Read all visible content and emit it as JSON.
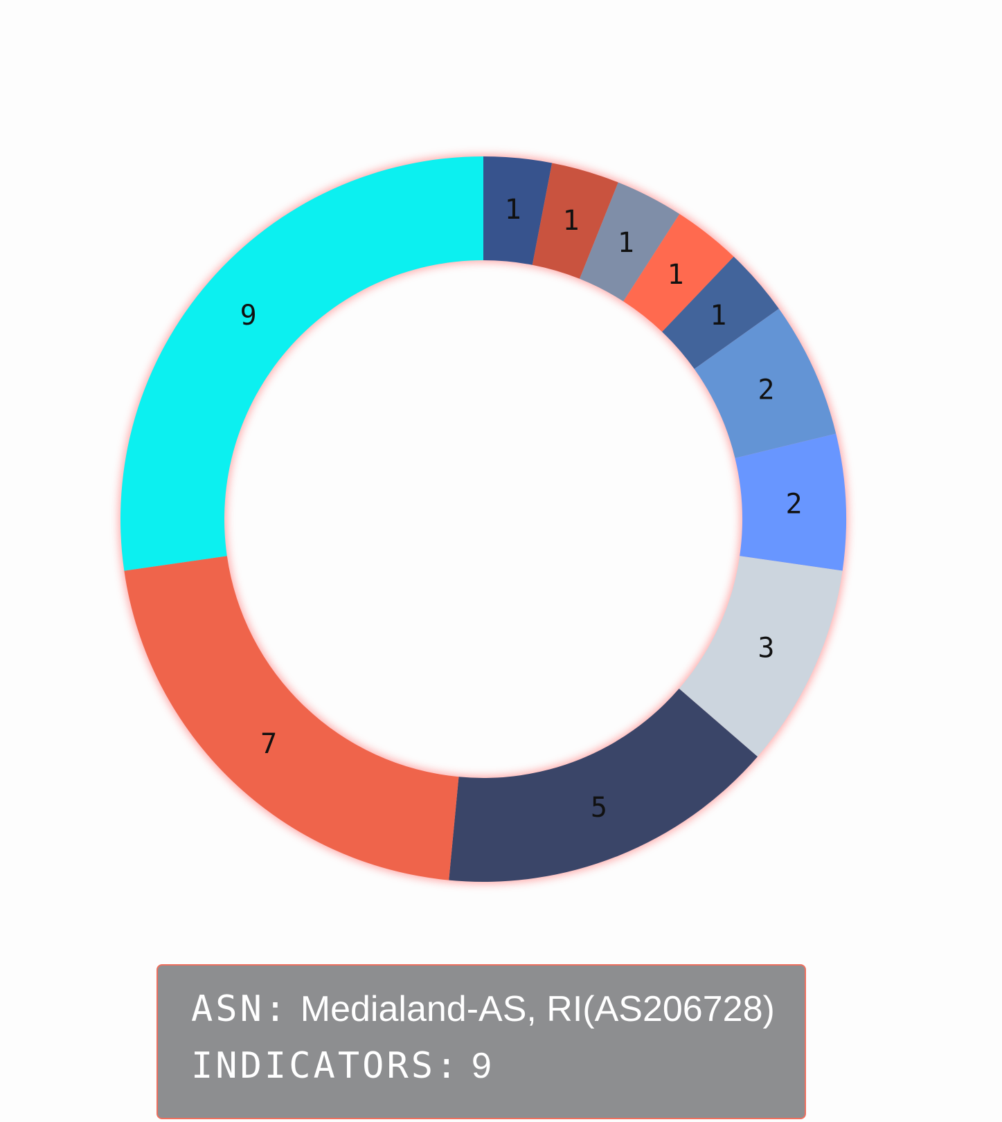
{
  "chart_data": {
    "type": "pie",
    "style": "donut",
    "slices": [
      {
        "value": 1,
        "label": "1",
        "color": "#37538d"
      },
      {
        "value": 1,
        "label": "1",
        "color": "#c9533f"
      },
      {
        "value": 1,
        "label": "1",
        "color": "#7f8ea8"
      },
      {
        "value": 1,
        "label": "1",
        "color": "#ff6a4f"
      },
      {
        "value": 1,
        "label": "1",
        "color": "#42649b"
      },
      {
        "value": 2,
        "label": "2",
        "color": "#6394d5"
      },
      {
        "value": 2,
        "label": "2",
        "color": "#6896ff"
      },
      {
        "value": 3,
        "label": "3",
        "color": "#ccd5de"
      },
      {
        "value": 5,
        "label": "5",
        "color": "#3a4568"
      },
      {
        "value": 7,
        "label": "7",
        "color": "#ef644b"
      },
      {
        "value": 9,
        "label": "9",
        "color": "#0cf0f0"
      }
    ],
    "highlighted_slice": 10,
    "highlight_glow_color": "#ff6b6b"
  },
  "tooltip": {
    "asn_key": "ASN:",
    "asn_value": "Medialand-AS, RI(AS206728)",
    "indicators_key": "INDICATORS:",
    "indicators_value": "9"
  }
}
